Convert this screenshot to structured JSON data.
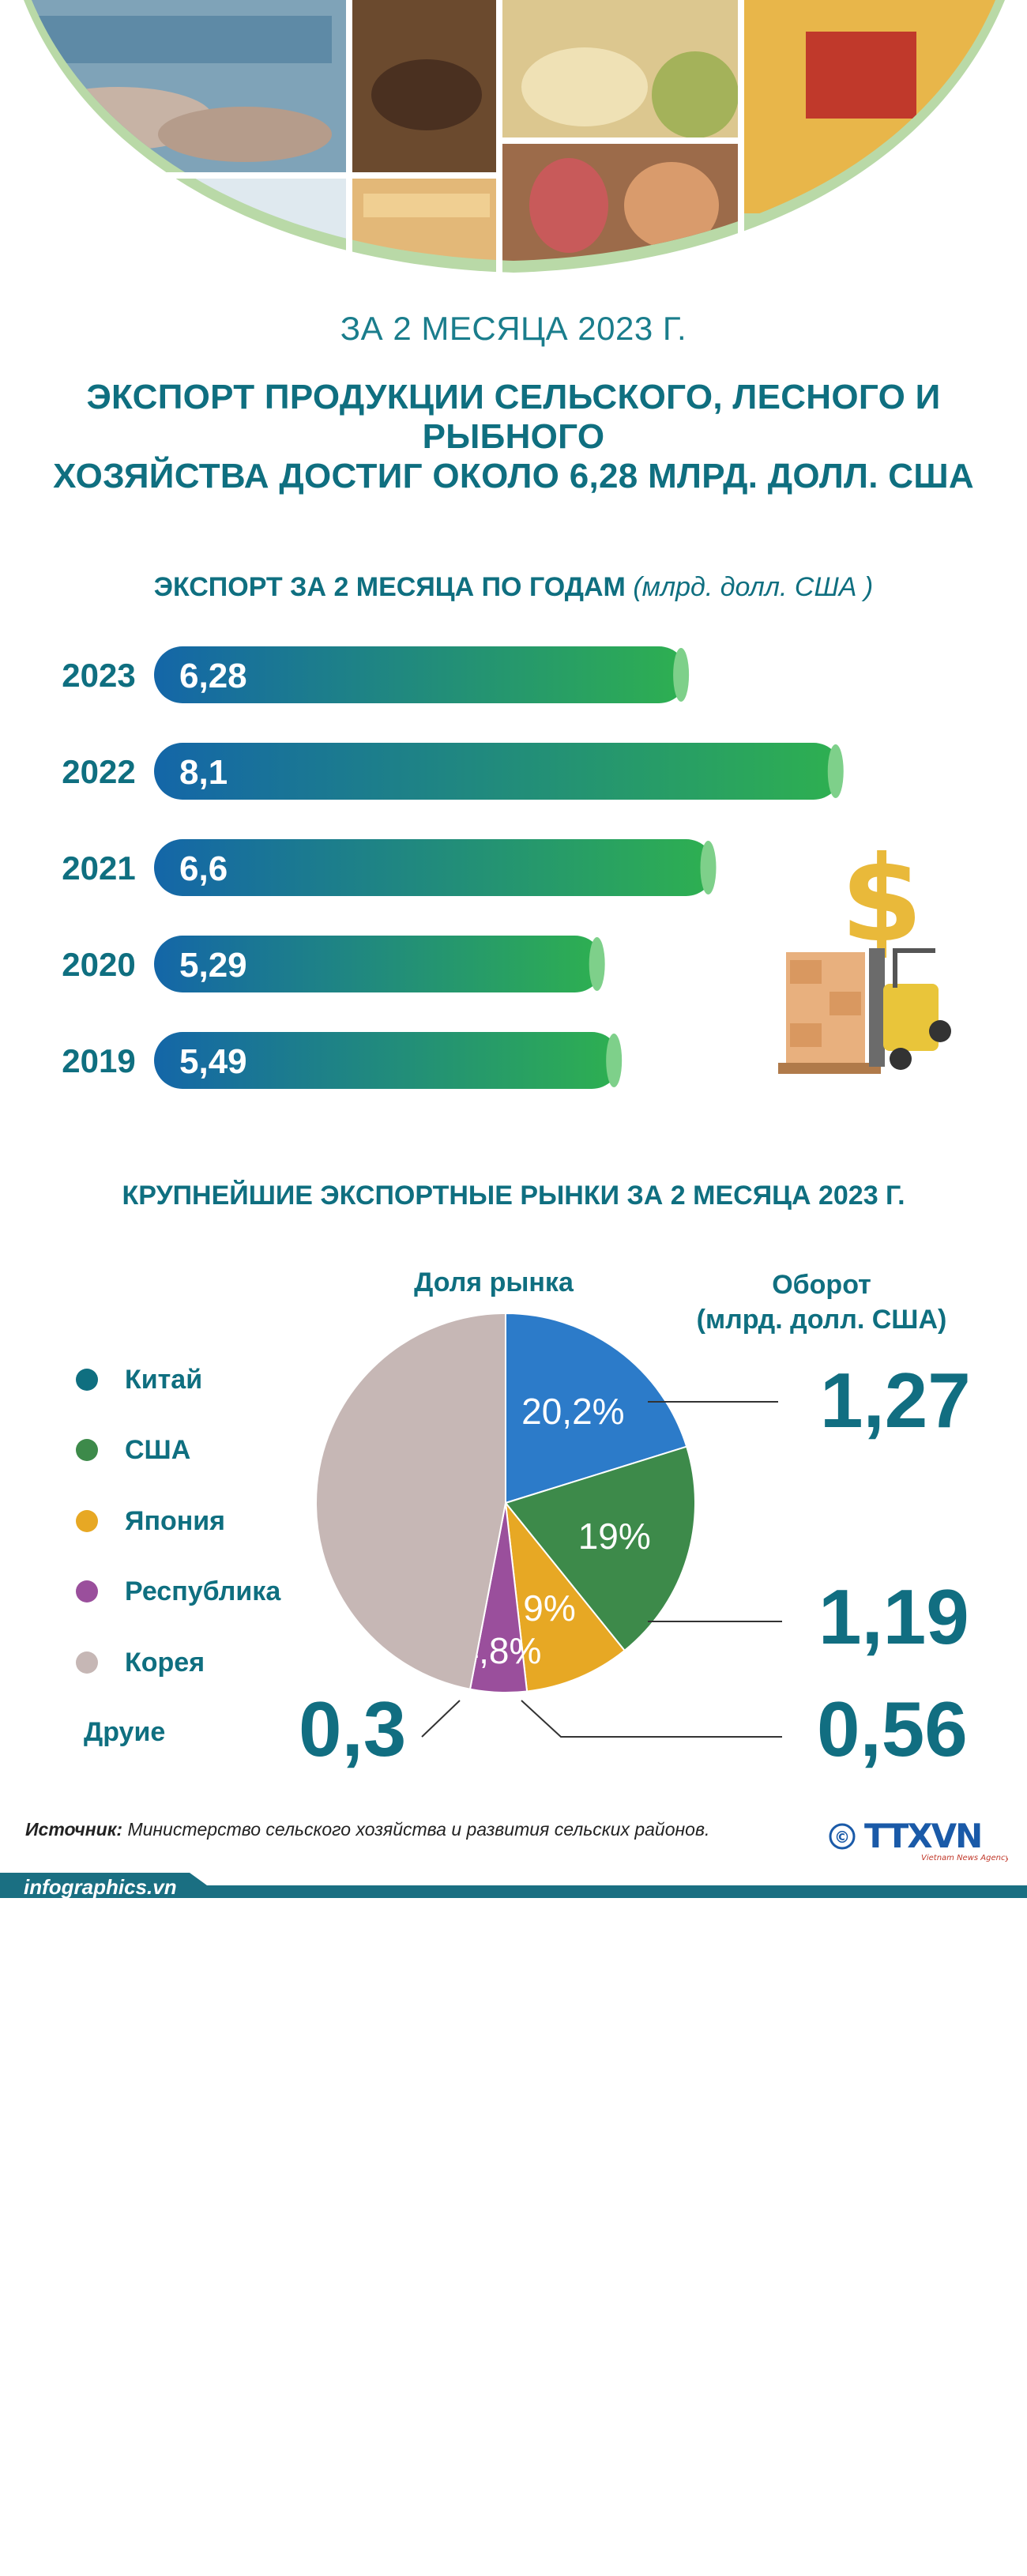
{
  "header": {
    "subtitle": "ЗА 2 МЕСЯЦА 2023 Г.",
    "headline_line1": "ЭКСПОРТ ПРОДУКЦИИ СЕЛЬСКОГО, ЛЕСНОГО И РЫБНОГО",
    "headline_line2": "ХОЗЯЙСТВА ДОСТИГ ОКОЛО 6,28 МЛРД. ДОЛЛ. США"
  },
  "bars_section": {
    "title": "ЭКСПОРТ ЗА 2 МЕСЯЦА ПО ГОДАМ",
    "unit": "(млрд. долл. США )"
  },
  "pie_section": {
    "title": "КРУПНЕЙШИЕ ЭКСПОРТНЫЕ РЫНКИ ЗА 2 МЕСЯЦА 2023 Г.",
    "share_header": "Доля рынка",
    "turnover_header_line1": "Оборот",
    "turnover_header_line2": "(млрд. долл. США)",
    "legend": [
      {
        "label": "Китай",
        "color": "#0f6f80"
      },
      {
        "label": "США",
        "color": "#3d8a4a"
      },
      {
        "label": "Япония",
        "color": "#e7a824"
      },
      {
        "label": "Республика",
        "color": "#9a4f9c"
      },
      {
        "label": "Корея",
        "color": "#c6b7b5"
      },
      {
        "label": "Друие",
        "color": ""
      }
    ],
    "turnover_values": {
      "china": "1,27",
      "usa": "1,19",
      "japan": "0,56",
      "other": "0,3"
    }
  },
  "chart_data": [
    {
      "type": "bar",
      "orientation": "horizontal",
      "title": "ЭКСПОРТ ЗА 2 МЕСЯЦА ПО ГОДАМ",
      "unit": "(млрд. долл. США )",
      "categories": [
        "2023",
        "2022",
        "2021",
        "2020",
        "2019"
      ],
      "values": [
        6.28,
        8.1,
        6.6,
        5.29,
        5.49
      ],
      "value_labels": [
        "6,28",
        "8,1",
        "6,6",
        "5,29",
        "5,49"
      ],
      "colors": {
        "start": "#1466a8",
        "end": "#2eb050"
      }
    },
    {
      "type": "pie",
      "title": "КРУПНЕЙШИЕ ЭКСПОРТНЫЕ РЫНКИ ЗА 2 МЕСЯЦА 2023 Г.",
      "slices": [
        {
          "name": "Китай",
          "value": 20.2,
          "label": "20,2%",
          "color": "#2c7bc9"
        },
        {
          "name": "США",
          "value": 19,
          "label": "19%",
          "color": "#3d8a4a"
        },
        {
          "name": "Япония",
          "value": 9,
          "label": "9%",
          "color": "#e7a824"
        },
        {
          "name": "Республика Корея",
          "value": 4.8,
          "label": "4,8%",
          "color": "#9a4f9c"
        },
        {
          "name": "Друие",
          "value": 47,
          "label": "",
          "color": "#c6b7b5"
        }
      ]
    }
  ],
  "footer": {
    "source_label": "Источник:",
    "source_text": "Министерство сельского хозяйства и развития сельских районов.",
    "logo_text": "TTXVN",
    "logo_sub": "Vietnam News Agency",
    "copyright": "©",
    "site": "infographics.vn",
    "bar_color": "#1a6f82"
  }
}
